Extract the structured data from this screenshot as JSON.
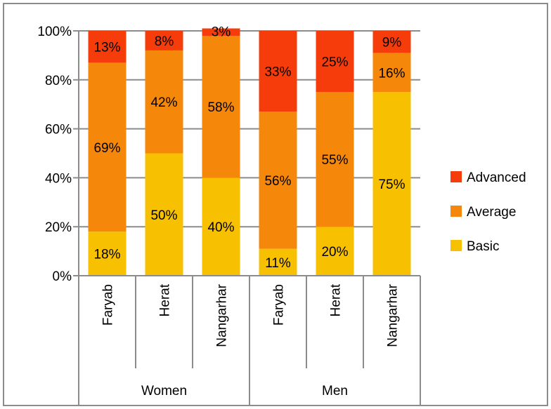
{
  "chart_data": {
    "type": "bar",
    "stacked": true,
    "percent_stacked": true,
    "categories": [
      "Faryab",
      "Herat",
      "Nangarhar",
      "Faryab",
      "Herat",
      "Nangarhar"
    ],
    "groups": [
      {
        "label": "Women",
        "categories": [
          "Faryab",
          "Herat",
          "Nangarhar"
        ]
      },
      {
        "label": "Men",
        "categories": [
          "Faryab",
          "Herat",
          "Nangarhar"
        ]
      }
    ],
    "series": [
      {
        "name": "Basic",
        "color": "#f7c000",
        "values": [
          18,
          50,
          40,
          11,
          20,
          75
        ],
        "labels": [
          "18%",
          "50%",
          "40%",
          "11%",
          "20%",
          "75%"
        ]
      },
      {
        "name": "Average",
        "color": "#f5870a",
        "values": [
          69,
          42,
          58,
          56,
          55,
          16
        ],
        "labels": [
          "69%",
          "42%",
          "58%",
          "56%",
          "55%",
          "16%"
        ]
      },
      {
        "name": "Advanced",
        "color": "#f53c0a",
        "values": [
          13,
          8,
          3,
          33,
          25,
          9
        ],
        "labels": [
          "13%",
          "8%",
          "3%",
          "33%",
          "25%",
          "9%"
        ]
      }
    ],
    "ylim": [
      0,
      100
    ],
    "yticks": [
      "0%",
      "20%",
      "40%",
      "60%",
      "80%",
      "100%"
    ],
    "grid": true,
    "legend": {
      "position": "right",
      "order": [
        "Advanced",
        "Average",
        "Basic"
      ]
    },
    "title": "",
    "xlabel": "",
    "ylabel": ""
  }
}
